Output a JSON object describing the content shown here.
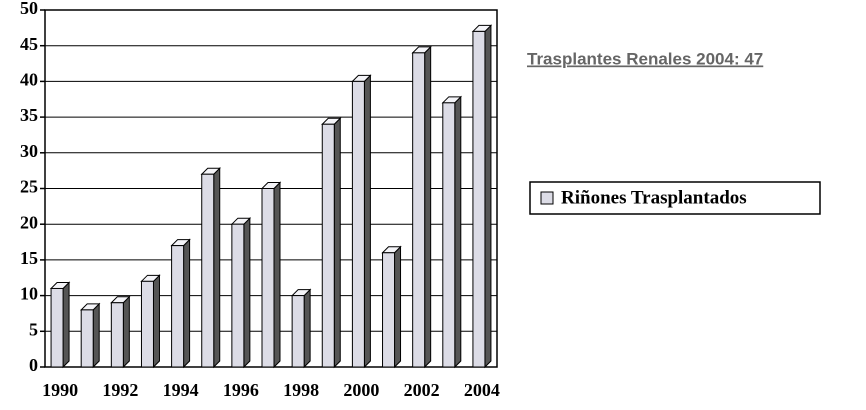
{
  "chart_data": {
    "type": "bar",
    "annotation": "Trasplantes Renales 2004: 47",
    "categories": [
      "1990",
      null,
      "1992",
      null,
      "1994",
      null,
      "1996",
      null,
      "1998",
      null,
      "2000",
      null,
      "2002",
      null,
      "2004"
    ],
    "series": [
      {
        "name": "Riñones Trasplantados",
        "color": "#dcdce6",
        "values": [
          11,
          8,
          9,
          12,
          17,
          27,
          20,
          25,
          10,
          34,
          40,
          16,
          44,
          37,
          47
        ]
      }
    ],
    "ylim": [
      0,
      50
    ],
    "yticks": [
      0,
      5,
      10,
      15,
      20,
      25,
      30,
      35,
      40,
      45,
      50
    ],
    "grid": true,
    "legend": "right"
  }
}
